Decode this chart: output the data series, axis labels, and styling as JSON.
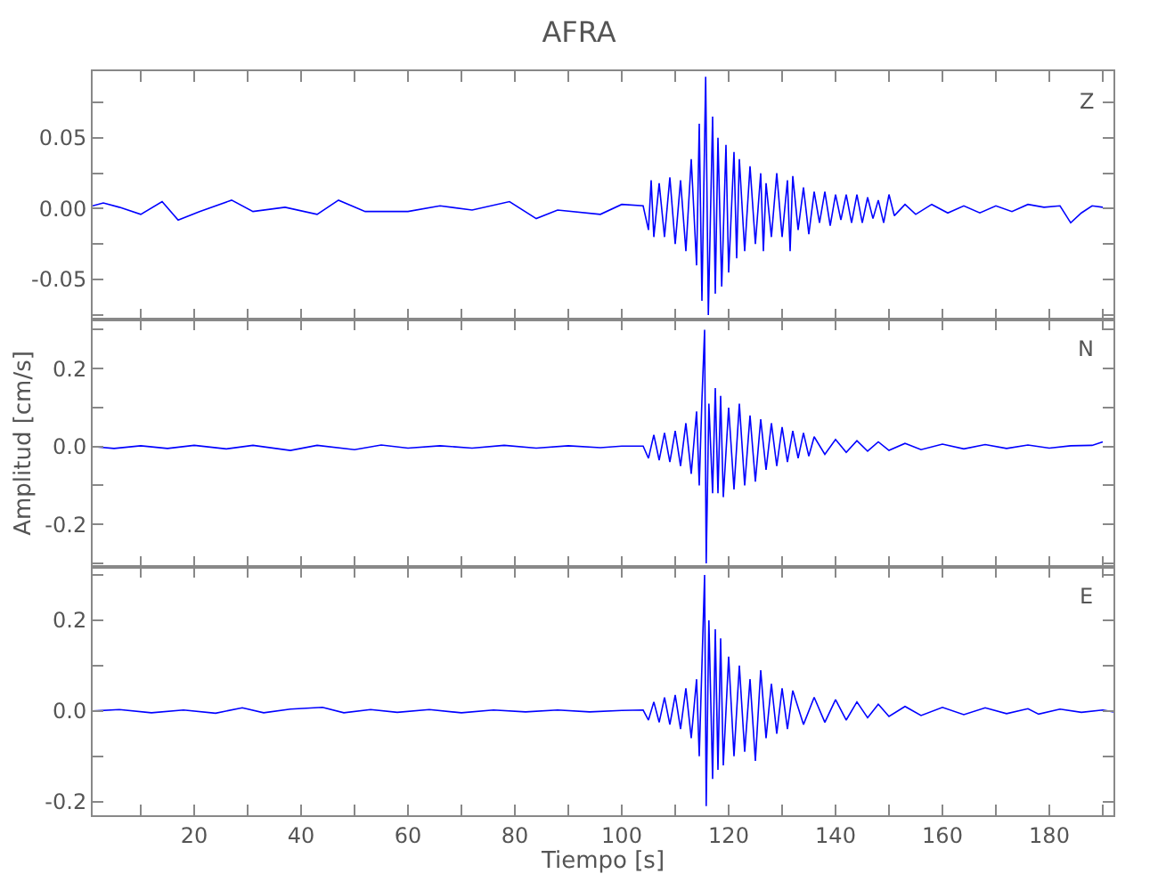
{
  "chart_data": [
    {
      "type": "line",
      "title": "AFRA",
      "annotations": [
        "Z"
      ],
      "tick_labels": "y",
      "xlim": [
        1,
        192
      ],
      "xticks": [
        {
          "value": 10,
          "label": null
        },
        20,
        {
          "value": 30,
          "label": null
        },
        40,
        {
          "value": 50,
          "label": null
        },
        60,
        {
          "value": 70,
          "label": null
        },
        80,
        {
          "value": 90,
          "label": null
        },
        100,
        {
          "value": 110,
          "label": null
        },
        120,
        {
          "value": 130,
          "label": null
        },
        140,
        {
          "value": 150,
          "label": null
        },
        160,
        {
          "value": 170,
          "label": null
        },
        180,
        {
          "value": 190,
          "label": null
        }
      ],
      "ylim": [
        -0.078,
        0.097
      ],
      "yticks": [
        {
          "value": -0.075,
          "label": null
        },
        {
          "value": -0.05,
          "label": "-0.05"
        },
        {
          "value": -0.025,
          "label": null
        },
        {
          "value": 0,
          "label": "0.00"
        },
        {
          "value": 0.025,
          "label": null
        },
        {
          "value": 0.05,
          "label": "0.05"
        },
        {
          "value": 0.075,
          "label": null
        }
      ],
      "series": [
        {
          "color": "#0000ff",
          "x": [
            1,
            3,
            6,
            10,
            14,
            17,
            21,
            27,
            31,
            37,
            43,
            47,
            52,
            60,
            66,
            72,
            79,
            84,
            88,
            96,
            100,
            104,
            105,
            105.5,
            106,
            107,
            108,
            109,
            110,
            111,
            112,
            113,
            114,
            114.5,
            115,
            115.7,
            116.2,
            117,
            117.5,
            118,
            118.7,
            119.5,
            120,
            121,
            121.5,
            122,
            123,
            124,
            125,
            126,
            126.5,
            127,
            128,
            129,
            130,
            131,
            131.5,
            132,
            133,
            134,
            135,
            136,
            137,
            138,
            139,
            140,
            141,
            142,
            143,
            144,
            145,
            146,
            147,
            148,
            149,
            150,
            151,
            153,
            155,
            158,
            161,
            164,
            167,
            170,
            173,
            176,
            179,
            182,
            184,
            186,
            188,
            190
          ],
          "values": [
            0.002,
            0.004,
            0.001,
            -0.004,
            0.005,
            -0.008,
            -0.002,
            0.006,
            -0.002,
            0.001,
            -0.004,
            0.006,
            -0.002,
            -0.002,
            0.002,
            -0.001,
            0.005,
            -0.007,
            -0.001,
            -0.004,
            0.003,
            0.002,
            -0.015,
            0.02,
            -0.02,
            0.018,
            -0.02,
            0.022,
            -0.025,
            0.02,
            -0.03,
            0.035,
            -0.04,
            0.06,
            -0.065,
            0.093,
            -0.075,
            0.065,
            -0.06,
            0.05,
            -0.055,
            0.045,
            -0.045,
            0.04,
            -0.035,
            0.035,
            -0.03,
            0.03,
            -0.025,
            0.025,
            -0.03,
            0.018,
            -0.02,
            0.025,
            -0.02,
            0.02,
            -0.03,
            0.023,
            -0.015,
            0.015,
            -0.018,
            0.012,
            -0.01,
            0.012,
            -0.012,
            0.01,
            -0.008,
            0.01,
            -0.01,
            0.01,
            -0.01,
            0.008,
            -0.007,
            0.006,
            -0.01,
            0.01,
            -0.005,
            0.003,
            -0.004,
            0.003,
            -0.003,
            0.002,
            -0.003,
            0.002,
            -0.002,
            0.003,
            0.001,
            0.002,
            -0.01,
            -0.003,
            0.002,
            0.001
          ]
        }
      ]
    },
    {
      "type": "line",
      "ylabel": "Amplitud [cm/s]",
      "annotations": [
        "N"
      ],
      "tick_labels": "y",
      "xlim": [
        1,
        192
      ],
      "xticks": [
        {
          "value": 10,
          "label": null
        },
        {
          "value": 20,
          "label": null
        },
        {
          "value": 30,
          "label": null
        },
        {
          "value": 40,
          "label": null
        },
        {
          "value": 50,
          "label": null
        },
        {
          "value": 60,
          "label": null
        },
        {
          "value": 70,
          "label": null
        },
        {
          "value": 80,
          "label": null
        },
        {
          "value": 90,
          "label": null
        },
        {
          "value": 100,
          "label": null
        },
        {
          "value": 110,
          "label": null
        },
        {
          "value": 120,
          "label": null
        },
        {
          "value": 130,
          "label": null
        },
        {
          "value": 140,
          "label": null
        },
        {
          "value": 150,
          "label": null
        },
        {
          "value": 160,
          "label": null
        },
        {
          "value": 170,
          "label": null
        },
        {
          "value": 180,
          "label": null
        },
        {
          "value": 190,
          "label": null
        }
      ],
      "ylim": [
        -0.31,
        0.327
      ],
      "yticks": [
        {
          "value": -0.3,
          "label": null
        },
        {
          "value": -0.2,
          "label": "-0.2"
        },
        {
          "value": -0.1,
          "label": null
        },
        {
          "value": 0,
          "label": "0.0"
        },
        {
          "value": 0.1,
          "label": null
        },
        {
          "value": 0.2,
          "label": "0.2"
        },
        {
          "value": 0.3,
          "label": null
        }
      ],
      "series": [
        {
          "color": "#0000ff",
          "x": [
            1,
            5,
            10,
            15,
            20,
            26,
            31,
            38,
            43,
            50,
            55,
            60,
            66,
            72,
            78,
            84,
            90,
            96,
            100,
            104,
            105,
            106,
            107,
            108,
            109,
            110,
            111,
            112,
            113,
            114,
            114.5,
            115,
            115.5,
            115.8,
            116.3,
            117,
            117.5,
            118,
            118.5,
            119,
            120,
            121,
            122,
            123,
            124,
            125,
            126,
            127,
            128,
            129,
            130,
            131,
            132,
            133,
            134,
            135,
            136,
            138,
            140,
            142,
            144,
            146,
            148,
            150,
            153,
            156,
            160,
            164,
            168,
            172,
            176,
            180,
            184,
            188,
            190
          ],
          "values": [
            0,
            -0.005,
            0.002,
            -0.005,
            0.003,
            -0.006,
            0.003,
            -0.01,
            0.003,
            -0.008,
            0.004,
            -0.004,
            0.002,
            -0.004,
            0.003,
            -0.004,
            0.002,
            -0.003,
            0.001,
            0.001,
            -0.03,
            0.03,
            -0.035,
            0.035,
            -0.04,
            0.04,
            -0.05,
            0.06,
            -0.07,
            0.09,
            -0.1,
            0.12,
            0.3,
            -0.3,
            0.11,
            -0.12,
            0.15,
            -0.12,
            0.13,
            -0.13,
            0.1,
            -0.11,
            0.11,
            -0.1,
            0.08,
            -0.09,
            0.07,
            -0.06,
            0.06,
            -0.05,
            0.05,
            -0.04,
            0.04,
            -0.03,
            0.035,
            -0.025,
            0.025,
            -0.02,
            0.018,
            -0.015,
            0.015,
            -0.012,
            0.012,
            -0.01,
            0.008,
            -0.008,
            0.006,
            -0.006,
            0.005,
            -0.005,
            0.004,
            -0.004,
            0.002,
            0.003,
            0.012
          ]
        }
      ]
    },
    {
      "type": "line",
      "xlabel": "Tiempo [s]",
      "annotations": [
        "E"
      ],
      "xlim": [
        1,
        192
      ],
      "xticks": [
        {
          "value": 10,
          "label": null
        },
        20,
        {
          "value": 30,
          "label": null
        },
        40,
        {
          "value": 50,
          "label": null
        },
        60,
        {
          "value": 70,
          "label": null
        },
        80,
        {
          "value": 90,
          "label": null
        },
        100,
        {
          "value": 110,
          "label": null
        },
        120,
        {
          "value": 130,
          "label": null
        },
        140,
        {
          "value": 150,
          "label": null
        },
        160,
        {
          "value": 170,
          "label": null
        },
        180,
        {
          "value": 190,
          "label": null
        }
      ],
      "ylim": [
        -0.23,
        0.317
      ],
      "yticks": [
        {
          "value": -0.2,
          "label": "-0.2"
        },
        {
          "value": -0.1,
          "label": null
        },
        {
          "value": 0,
          "label": "0.0"
        },
        {
          "value": 0.1,
          "label": null
        },
        {
          "value": 0.2,
          "label": "0.2"
        },
        {
          "value": 0.3,
          "label": null
        }
      ],
      "series": [
        {
          "color": "#0000ff",
          "x": [
            1,
            6,
            12,
            18,
            24,
            29,
            33,
            38,
            44,
            48,
            53,
            58,
            64,
            70,
            76,
            82,
            88,
            94,
            100,
            104,
            105,
            106,
            107,
            108,
            109,
            110,
            111,
            112,
            113,
            114,
            114.5,
            115,
            115.5,
            115.8,
            116.3,
            117,
            117.5,
            118,
            118.5,
            119,
            120,
            121,
            122,
            123,
            124,
            125,
            126,
            127,
            128,
            129,
            130,
            131,
            132,
            134,
            136,
            138,
            140,
            142,
            144,
            146,
            148,
            150,
            153,
            156,
            160,
            164,
            168,
            172,
            176,
            178,
            182,
            186,
            190,
            192
          ],
          "values": [
            0,
            0.003,
            -0.004,
            0.002,
            -0.005,
            0.007,
            -0.004,
            0.004,
            0.008,
            -0.004,
            0.003,
            -0.003,
            0.003,
            -0.004,
            0.002,
            -0.002,
            0.002,
            -0.002,
            0.001,
            0.002,
            -0.02,
            0.02,
            -0.025,
            0.03,
            -0.03,
            0.035,
            -0.04,
            0.05,
            -0.06,
            0.07,
            -0.1,
            0.1,
            0.3,
            -0.21,
            0.2,
            -0.15,
            0.18,
            -0.13,
            0.16,
            -0.12,
            0.12,
            -0.1,
            0.1,
            -0.09,
            0.07,
            -0.11,
            0.09,
            -0.06,
            0.06,
            -0.05,
            0.05,
            -0.04,
            0.045,
            -0.03,
            0.03,
            -0.025,
            0.025,
            -0.02,
            0.02,
            -0.015,
            0.015,
            -0.012,
            0.01,
            -0.01,
            0.008,
            -0.008,
            0.007,
            -0.006,
            0.005,
            -0.007,
            0.004,
            -0.003,
            0.002,
            -0.002
          ]
        }
      ]
    }
  ]
}
